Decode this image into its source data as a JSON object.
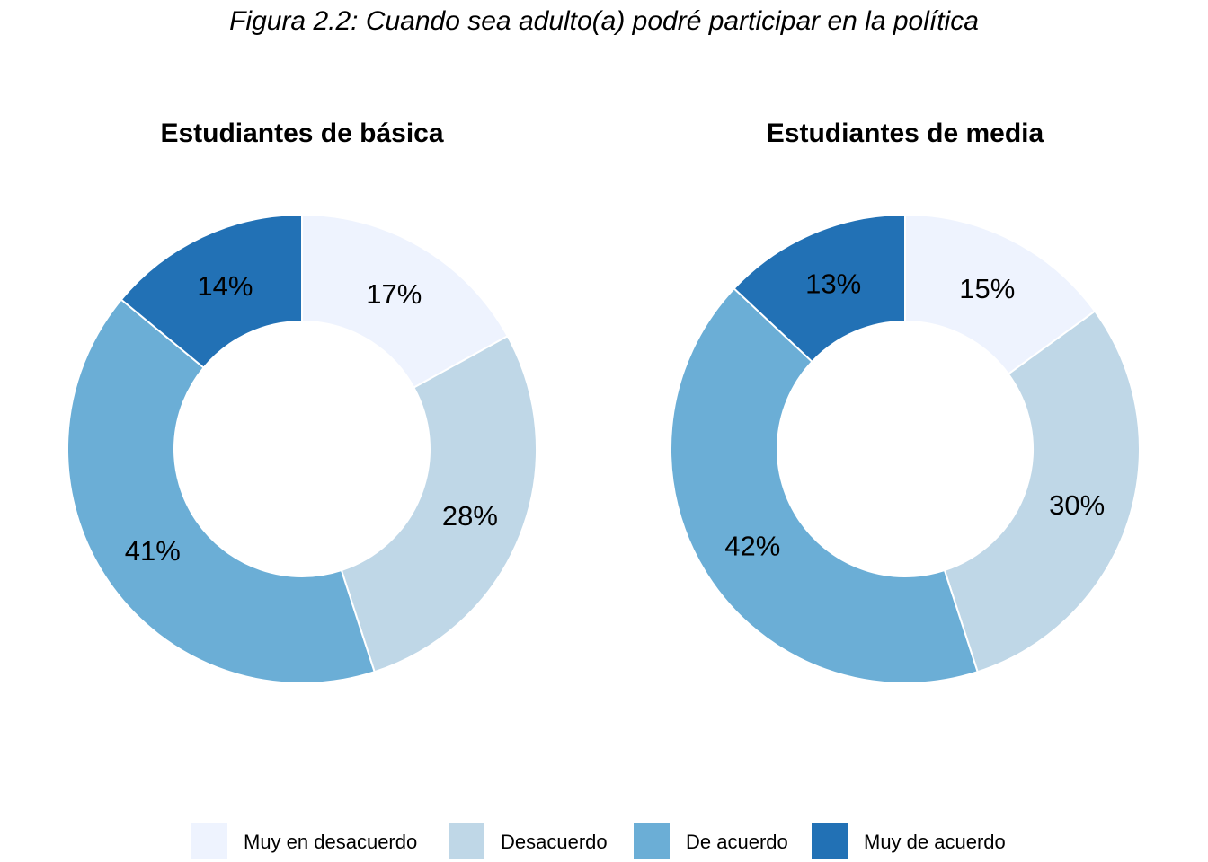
{
  "chart_data": {
    "type": "donut",
    "title": "Figura 2.2: Cuando sea adulto(a) podré participar en la política",
    "categories": [
      "Muy en desacuerdo",
      "Desacuerdo",
      "De acuerdo",
      "Muy de acuerdo"
    ],
    "colors": [
      "#eef3fe",
      "#bfd7e7",
      "#6baed6",
      "#2271b5"
    ],
    "panels": [
      {
        "name": "basica",
        "title": "Estudiantes de básica",
        "values": [
          17,
          28,
          41,
          14
        ],
        "labels": [
          "17%",
          "28%",
          "41%",
          "14%"
        ]
      },
      {
        "name": "media",
        "title": "Estudiantes de media",
        "values": [
          15,
          30,
          42,
          13
        ],
        "labels": [
          "15%",
          "30%",
          "42%",
          "13%"
        ]
      }
    ],
    "legend": {
      "position": "bottom",
      "entries": [
        "Muy en desacuerdo",
        "Desacuerdo",
        "De acuerdo",
        "Muy de acuerdo"
      ]
    }
  }
}
